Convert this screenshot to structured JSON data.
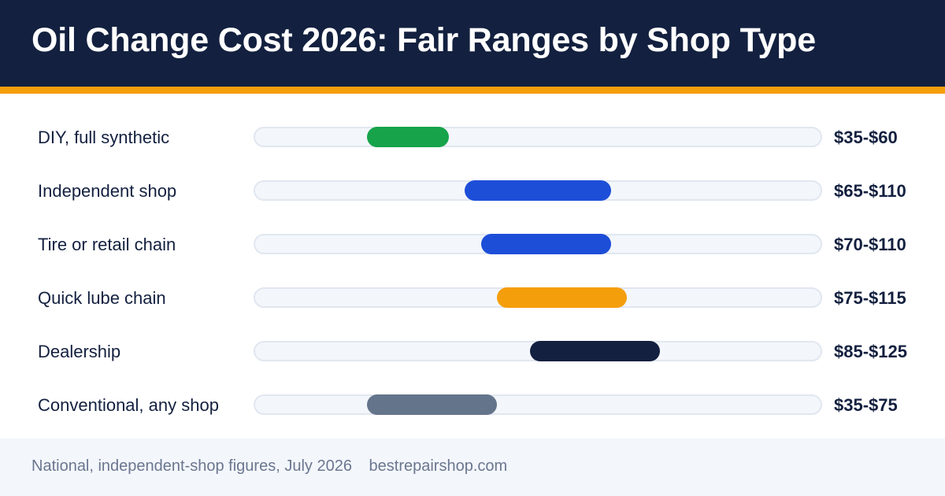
{
  "header": {
    "title": "Oil Change Cost 2026: Fair Ranges by Shop Type"
  },
  "colors": {
    "header_bg": "#13203f",
    "accent": "#f59e0b",
    "track": "#f3f6fb"
  },
  "chart_data": {
    "type": "range-bar",
    "title": "Oil Change Cost 2026: Fair Ranges by Shop Type",
    "axis": {
      "min": 0,
      "max": 175,
      "unit": "USD"
    },
    "grid": false,
    "categories": [
      "DIY, full synthetic",
      "Independent shop",
      "Tire or retail chain",
      "Quick lube chain",
      "Dealership",
      "Conventional, any shop"
    ],
    "series": [
      {
        "category": "DIY, full synthetic",
        "low": 35,
        "high": 60,
        "label": "$35-$60",
        "color": "#16a34a"
      },
      {
        "category": "Independent shop",
        "low": 65,
        "high": 110,
        "label": "$65-$110",
        "color": "#1d4ed8"
      },
      {
        "category": "Tire or retail chain",
        "low": 70,
        "high": 110,
        "label": "$70-$110",
        "color": "#1d4ed8"
      },
      {
        "category": "Quick lube chain",
        "low": 75,
        "high": 115,
        "label": "$75-$115",
        "color": "#f59e0b"
      },
      {
        "category": "Dealership",
        "low": 85,
        "high": 125,
        "label": "$85-$125",
        "color": "#13203f"
      },
      {
        "category": "Conventional, any shop",
        "low": 35,
        "high": 75,
        "label": "$35-$75",
        "color": "#64748b"
      }
    ]
  },
  "footer": {
    "note": "National, independent-shop figures, July 2026",
    "site": "bestrepairshop.com"
  }
}
